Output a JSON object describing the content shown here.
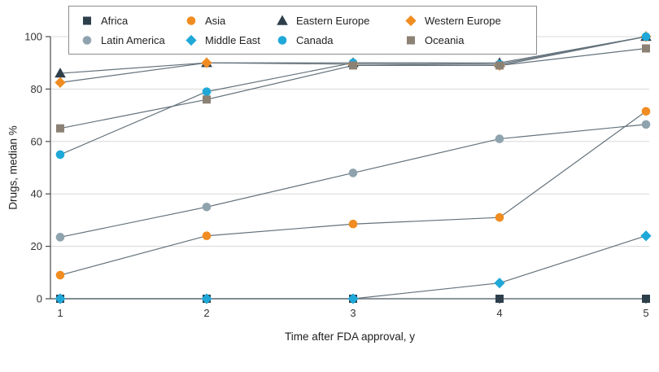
{
  "chart_data": {
    "type": "line",
    "title": "",
    "xlabel": "Time after FDA approval, y",
    "ylabel": "Drugs, median %",
    "x": [
      1,
      2,
      3,
      4,
      5
    ],
    "xlim": [
      1,
      5
    ],
    "ylim": [
      0,
      100
    ],
    "yticks": [
      0,
      20,
      40,
      60,
      80,
      100
    ],
    "grid": true,
    "legend_position": "top",
    "background_color": "#ffffff",
    "gridline_color": "#d8d8d8",
    "axis_color": "#4a4a4a",
    "line_color": "#64727b",
    "series": [
      {
        "name": "Africa",
        "marker": "square",
        "color": "#2e3f4c",
        "values": [
          0,
          0,
          0,
          0,
          0
        ]
      },
      {
        "name": "Asia",
        "marker": "circle",
        "color": "#f08c21",
        "values": [
          9,
          24,
          28.5,
          31,
          71.5
        ]
      },
      {
        "name": "Eastern Europe",
        "marker": "triangle",
        "color": "#2e3f4c",
        "values": [
          86,
          90,
          90,
          90,
          100
        ]
      },
      {
        "name": "Western Europe",
        "marker": "diamond",
        "color": "#f08c21",
        "values": [
          82.5,
          90,
          89.5,
          89,
          100
        ]
      },
      {
        "name": "Latin America",
        "marker": "circle",
        "color": "#8fa3ae",
        "values": [
          23.5,
          35,
          48,
          61,
          66.5
        ]
      },
      {
        "name": "Middle East",
        "marker": "diamond",
        "color": "#1fa8d8",
        "values": [
          0,
          0,
          0,
          6,
          24
        ]
      },
      {
        "name": "Canada",
        "marker": "circle",
        "color": "#1fa8d8",
        "values": [
          55,
          79,
          90,
          89.5,
          100
        ]
      },
      {
        "name": "Oceania",
        "marker": "square",
        "color": "#8c8175",
        "values": [
          65,
          76,
          89,
          89,
          95.5
        ]
      }
    ]
  }
}
